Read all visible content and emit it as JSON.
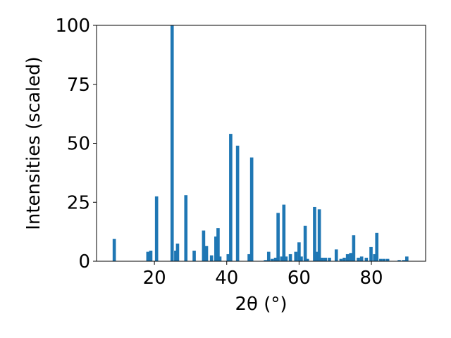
{
  "colors": {
    "bar": "#1f77b4",
    "axis": "#000000",
    "background": "#ffffff"
  },
  "chart_data": {
    "type": "bar",
    "title": "",
    "xlabel": "2θ (°)",
    "ylabel": "Intensities (scaled)",
    "xlim": [
      4,
      95
    ],
    "ylim": [
      0,
      100
    ],
    "grid": false,
    "legend": "none",
    "x_ticks": [
      20,
      40,
      60,
      80
    ],
    "y_ticks": [
      0,
      25,
      50,
      75,
      100
    ],
    "x_tick_labels": [
      "20",
      "40",
      "60",
      "80"
    ],
    "y_tick_labels": [
      "0",
      "25",
      "50",
      "75",
      "100"
    ],
    "bar_width": 0.9,
    "series": [
      {
        "x": [
          8.9,
          18.2,
          19.0,
          20.6,
          24.9,
          25.9,
          26.4,
          28.7,
          31.0,
          33.6,
          34.4,
          35.8,
          37.0,
          37.6,
          38.1,
          40.4,
          41.1,
          43.0,
          46.2,
          46.9,
          50.7,
          51.6,
          52.6,
          53.5,
          54.2,
          55.2,
          55.8,
          56.4,
          57.6,
          59.1,
          60.0,
          60.6,
          61.7,
          62.3,
          64.3,
          64.9,
          65.6,
          66.4,
          67.3,
          68.4,
          70.3,
          71.6,
          72.5,
          73.4,
          74.3,
          75.1,
          76.4,
          77.3,
          78.6,
          79.9,
          80.9,
          81.5,
          82.6,
          83.5,
          84.5,
          87.7,
          88.9,
          89.8
        ],
        "values": [
          9.5,
          4.0,
          4.5,
          27.5,
          100,
          4.5,
          7.5,
          28,
          4.5,
          13,
          6.5,
          2.5,
          10.5,
          14,
          2.0,
          3.0,
          54,
          49,
          3.0,
          44,
          0.5,
          4.0,
          1.0,
          1.5,
          20.5,
          2.0,
          24,
          2.0,
          3.0,
          4.0,
          8.0,
          2.0,
          15,
          1.0,
          23,
          4.0,
          22,
          1.5,
          1.5,
          1.5,
          5.0,
          1.0,
          1.5,
          3.0,
          3.5,
          11,
          1.5,
          2.0,
          1.5,
          6.0,
          3.0,
          12,
          1.0,
          1.0,
          1.0,
          0.5,
          0.5,
          2.0
        ]
      }
    ]
  }
}
